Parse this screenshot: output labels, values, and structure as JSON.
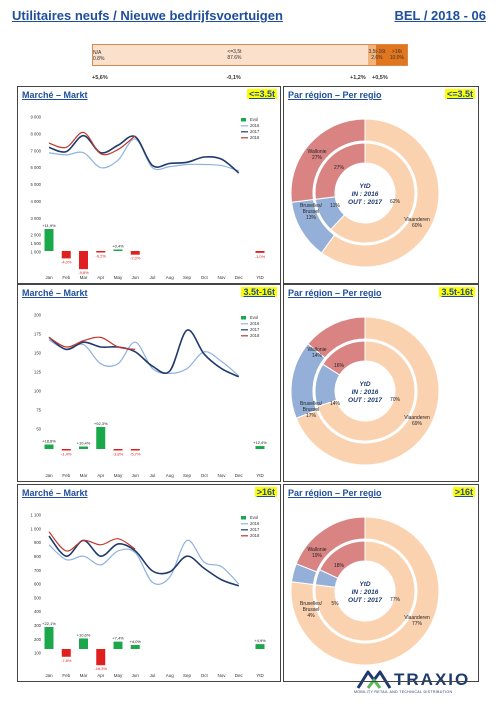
{
  "header": {
    "title": "Utilitaires neufs / Nieuwe bedrijfsvoertuigen",
    "code": "BEL / 2018 - 06"
  },
  "segment_bar": {
    "segments": [
      {
        "label": "N/A\n0.8%",
        "share": 0.8,
        "color": "#fbe0cc",
        "evol": "+5,6%"
      },
      {
        "label": "<=3,5t\n87.6%",
        "share": 87.6,
        "color": "#fbe0cc",
        "evol": "-0,1%"
      },
      {
        "label": "3,5t-16t\n2.6%",
        "share": 2.6,
        "color": "#f2b27e",
        "evol": "+1,2%"
      },
      {
        "label": ">16t\n10.0%",
        "share": 10.0,
        "color": "#e2761f",
        "evol": "+0,5%"
      }
    ]
  },
  "colors": {
    "evol_pos": "#1aa84a",
    "evol_neg": "#e02020",
    "y2016": "#8fb2de",
    "y2017": "#1f3a6e",
    "y2018": "#c0392b",
    "vlaanderen": "#fbd2b0",
    "wallonie": "#d98383",
    "bruxelles": "#94b0d8"
  },
  "market_title": "Marché – Markt",
  "region_title": "Par région – Per regio",
  "legend_labels": [
    "Evol",
    "2016",
    "2017",
    "2018"
  ],
  "months": [
    "Jan",
    "Feb",
    "Mar",
    "Apr",
    "May",
    "Jun",
    "Jul",
    "Aug",
    "Sep",
    "Oct",
    "Nov",
    "Dec"
  ],
  "ytd_label": "YtD",
  "donut_center": [
    "YtD",
    "IN : 2016",
    "OUT : 2017"
  ],
  "chart_data": [
    {
      "type": "line",
      "segment": "<=3.5t",
      "ylim": [
        0,
        9000
      ],
      "yticks": [
        0,
        500,
        1000,
        1500,
        2000,
        2500,
        3000,
        3500,
        4000,
        4500,
        5000,
        5500,
        6000,
        6500,
        7000,
        7500,
        8000,
        8500,
        9000
      ],
      "yticks_shown": [
        "",
        "",
        "1 000",
        "1 500",
        "2 000",
        "",
        "3 000",
        "",
        "4 000",
        "",
        "5 000",
        "",
        "6 000",
        "",
        "7 000",
        "",
        "8 000",
        "",
        "9 000"
      ],
      "series": [
        {
          "name": "2016",
          "values": [
            6400,
            6200,
            6400,
            5000,
            5700,
            7700,
            5000,
            5100,
            5300,
            5300,
            5200,
            4700
          ]
        },
        {
          "name": "2017",
          "values": [
            6900,
            6500,
            8000,
            6400,
            7100,
            7900,
            5200,
            5400,
            5500,
            6000,
            5800,
            4500
          ]
        },
        {
          "name": "2018",
          "values": [
            7300,
            6900,
            8300,
            6300,
            6700,
            8000
          ]
        }
      ],
      "evol": {
        "values": [
          11.9,
          -4.0,
          -9.8,
          -0.2,
          0.4,
          -2.0
        ],
        "labels": [
          "+11,9%",
          "-4,0%",
          "-9,8%",
          "-0,2%",
          "+0,4%",
          "-2,0%"
        ],
        "ytd": -1.0,
        "ytd_label": "-1,0%"
      },
      "donut": {
        "outer": [
          {
            "name": "Vlaanderen",
            "pct": 60
          },
          {
            "name": "Bruxelles / Brussel",
            "pct": 13
          },
          {
            "name": "Wallonie",
            "pct": 27
          }
        ],
        "inner": [
          62,
          11,
          27
        ],
        "labels": [
          "Wallonie\n27%",
          "Bruxelles / Brussel\n13%",
          "Vlaanderen\n60%"
        ],
        "inner_labels": [
          "27%",
          "11%",
          "62%"
        ]
      }
    },
    {
      "type": "line",
      "segment": "3.5t-16t",
      "ylim": [
        0,
        200
      ],
      "yticks": [
        0,
        25,
        50,
        75,
        100,
        125,
        150,
        175,
        200
      ],
      "yticks_shown": [
        "",
        "",
        "50",
        "75",
        "100",
        "125",
        "150",
        "175",
        "200"
      ],
      "series": [
        {
          "name": "2016",
          "values": [
            165,
            145,
            155,
            115,
            115,
            160,
            105,
            95,
            105,
            140,
            120,
            90
          ]
        },
        {
          "name": "2017",
          "values": [
            170,
            145,
            160,
            150,
            150,
            140,
            110,
            100,
            185,
            135,
            105,
            88
          ]
        },
        {
          "name": "2018",
          "values": [
            170,
            150,
            163,
            170,
            150,
            145
          ]
        }
      ],
      "evol": {
        "values": [
          18.8,
          -1.4,
          10.4,
          92.3,
          -3.8,
          -5.7
        ],
        "labels": [
          "+18,8%",
          "-1,4%",
          "+10,4%",
          "+92,3%",
          "-3,8%",
          "-5,7%"
        ],
        "ytd": 12.4,
        "ytd_label": "+12,4%"
      },
      "donut": {
        "outer": [
          {
            "name": "Vlaanderen",
            "pct": 69
          },
          {
            "name": "Bruxelles / Brussel",
            "pct": 17
          },
          {
            "name": "Wallonie",
            "pct": 14
          }
        ],
        "inner": [
          70,
          14,
          16
        ],
        "labels": [
          "Wallonie\n14%",
          "Bruxelles / Brussel\n17%",
          "Vlaanderen\n69%"
        ],
        "inner_labels": [
          "16%",
          "14%",
          "70%"
        ]
      }
    },
    {
      "type": "line",
      "segment": ">16t",
      "ylim": [
        0,
        1100
      ],
      "yticks": [
        0,
        100,
        200,
        300,
        400,
        500,
        600,
        700,
        800,
        900,
        1000,
        1100
      ],
      "yticks_shown": [
        "",
        "100",
        "200",
        "300",
        "400",
        "500",
        "600",
        "700",
        "800",
        "900",
        "1 000",
        "1 100"
      ],
      "series": [
        {
          "name": "2016",
          "values": [
            850,
            680,
            720,
            620,
            780,
            760,
            420,
            480,
            900,
            650,
            600,
            400
          ]
        },
        {
          "name": "2017",
          "values": [
            950,
            720,
            900,
            720,
            860,
            780,
            550,
            540,
            720,
            580,
            450,
            380
          ]
        },
        {
          "name": "2018",
          "values": [
            1000,
            780,
            900,
            850,
            920,
            800
          ]
        }
      ],
      "evol": {
        "values": [
          22.1,
          -7.8,
          10.6,
          -16.3,
          7.4,
          4.0
        ],
        "labels": [
          "+22,1%",
          "-7,8%",
          "+10,6%",
          "-16,3%",
          "+7,4%",
          "+4,0%"
        ],
        "ytd": 4.9,
        "ytd_label": "+4,9%"
      },
      "donut": {
        "outer": [
          {
            "name": "Vlaanderen",
            "pct": 77
          },
          {
            "name": "Bruxelles / Brussel",
            "pct": 4
          },
          {
            "name": "Wallonie",
            "pct": 19
          }
        ],
        "inner": [
          77,
          5,
          18
        ],
        "labels": [
          "Wallonie\n19%",
          "Bruxelles / Brussel\n4%",
          "Vlaanderen\n77%"
        ],
        "inner_labels": [
          "18%",
          "5%",
          "77%"
        ]
      }
    }
  ],
  "logo": {
    "name": "TRAXIO",
    "tagline": "MOBILITY RETAIL AND TECHNICAL DISTRIBUTION"
  }
}
